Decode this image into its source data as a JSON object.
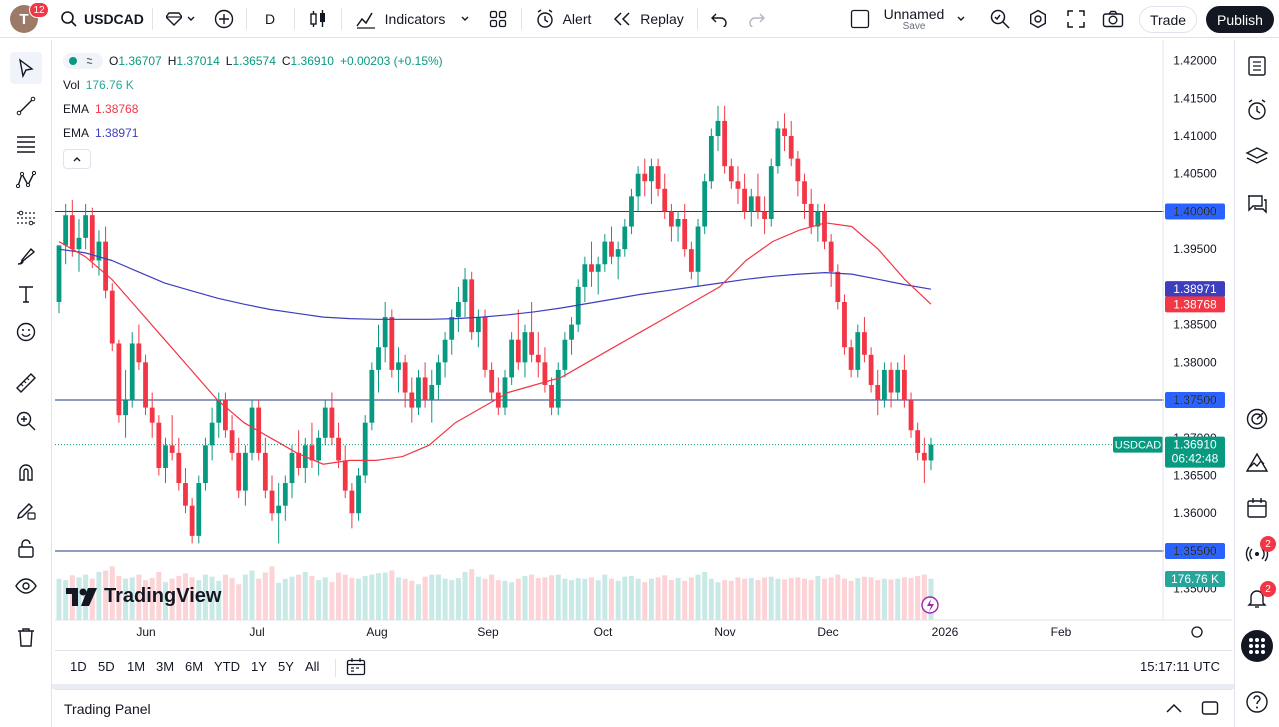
{
  "toolbar": {
    "avatar_letter": "T",
    "notification_count": "12",
    "symbol": "USDCAD",
    "interval": "D",
    "indicators_label": "Indicators",
    "alert_label": "Alert",
    "replay_label": "Replay",
    "layout_name": "Unnamed",
    "layout_save_label": "Save",
    "trade_label": "Trade",
    "publish_label": "Publish"
  },
  "legend": {
    "o_label": "O",
    "o_value": "1.36707",
    "h_label": "H",
    "h_value": "1.37014",
    "l_label": "L",
    "l_value": "1.36574",
    "c_label": "C",
    "c_value": "1.36910",
    "change": "+0.00203 (+0.15%)",
    "vol_label": "Vol",
    "vol_value": "176.76 K",
    "ema1_label": "EMA",
    "ema1_value": "1.38768",
    "ema2_label": "EMA",
    "ema2_value": "1.38971"
  },
  "price_axis": {
    "ticks": [
      "1.42000",
      "1.41500",
      "1.41000",
      "1.40500",
      "1.40000",
      "1.39500",
      "1.39000",
      "1.38500",
      "1.38000",
      "1.37500",
      "1.37000",
      "1.36500",
      "1.36000",
      "1.35500",
      "1.35000"
    ],
    "levels": [
      {
        "label": "1.40000",
        "price": 1.4
      },
      {
        "label": "1.37500",
        "price": 1.375
      },
      {
        "label": "1.35500",
        "price": 1.355
      }
    ],
    "ema_long_label": "1.38971",
    "ema_short_label": "1.38768",
    "current_symbol": "USDCAD",
    "current_price": "1.36910",
    "countdown": "06:42:48",
    "volume_label": "176.76 K"
  },
  "time_axis": {
    "labels": [
      "Jun",
      "Jul",
      "Aug",
      "Sep",
      "Oct",
      "Nov",
      "Dec",
      "2026",
      "Feb"
    ]
  },
  "bottom": {
    "ranges": [
      "1D",
      "5D",
      "1M",
      "3M",
      "6M",
      "YTD",
      "1Y",
      "5Y",
      "All"
    ],
    "clock": "15:17:11 UTC",
    "trading_panel": "Trading Panel"
  },
  "brand": {
    "logo_text": "TradingView"
  },
  "badges": {
    "right_alerts": "2",
    "right_notifications": "2"
  },
  "colors": {
    "up": "#089981",
    "down": "#f23645",
    "ema_short": "#f23645",
    "ema_long": "#3d3dbf",
    "level_line": "#2962ff",
    "accent": "#2962ff"
  },
  "chart_data": {
    "type": "candlestick",
    "ylim": [
      1.3485,
      1.421
    ],
    "points": [
      [
        1.388,
        1.3955,
        1.3865,
        1.3955
      ],
      [
        1.3955,
        1.401,
        1.393,
        1.3995
      ],
      [
        1.3995,
        1.4015,
        1.394,
        1.395
      ],
      [
        1.395,
        1.399,
        1.392,
        1.3965
      ],
      [
        1.3965,
        1.401,
        1.395,
        1.3995
      ],
      [
        1.3995,
        1.4005,
        1.3925,
        1.3935
      ],
      [
        1.3935,
        1.3975,
        1.3915,
        1.396
      ],
      [
        1.396,
        1.398,
        1.3885,
        1.3895
      ],
      [
        1.3895,
        1.3905,
        1.3815,
        1.3825
      ],
      [
        1.3825,
        1.383,
        1.372,
        1.373
      ],
      [
        1.373,
        1.379,
        1.37,
        1.375
      ],
      [
        1.375,
        1.384,
        1.374,
        1.3825
      ],
      [
        1.3825,
        1.385,
        1.379,
        1.38
      ],
      [
        1.38,
        1.381,
        1.373,
        1.374
      ],
      [
        1.374,
        1.376,
        1.37,
        1.372
      ],
      [
        1.372,
        1.373,
        1.365,
        1.366
      ],
      [
        1.366,
        1.37,
        1.364,
        1.369
      ],
      [
        1.369,
        1.373,
        1.367,
        1.368
      ],
      [
        1.368,
        1.37,
        1.363,
        1.364
      ],
      [
        1.364,
        1.366,
        1.36,
        1.361
      ],
      [
        1.361,
        1.362,
        1.356,
        1.357
      ],
      [
        1.357,
        1.365,
        1.356,
        1.364
      ],
      [
        1.364,
        1.37,
        1.363,
        1.369
      ],
      [
        1.369,
        1.374,
        1.367,
        1.372
      ],
      [
        1.372,
        1.376,
        1.37,
        1.375
      ],
      [
        1.375,
        1.376,
        1.37,
        1.371
      ],
      [
        1.371,
        1.373,
        1.367,
        1.368
      ],
      [
        1.368,
        1.37,
        1.362,
        1.363
      ],
      [
        1.363,
        1.369,
        1.361,
        1.368
      ],
      [
        1.368,
        1.375,
        1.367,
        1.374
      ],
      [
        1.374,
        1.375,
        1.367,
        1.368
      ],
      [
        1.368,
        1.37,
        1.362,
        1.363
      ],
      [
        1.363,
        1.365,
        1.359,
        1.36
      ],
      [
        1.36,
        1.364,
        1.356,
        1.361
      ],
      [
        1.361,
        1.365,
        1.359,
        1.364
      ],
      [
        1.364,
        1.369,
        1.362,
        1.368
      ],
      [
        1.368,
        1.371,
        1.365,
        1.366
      ],
      [
        1.366,
        1.37,
        1.364,
        1.369
      ],
      [
        1.369,
        1.372,
        1.366,
        1.367
      ],
      [
        1.367,
        1.371,
        1.365,
        1.37
      ],
      [
        1.37,
        1.375,
        1.369,
        1.374
      ],
      [
        1.374,
        1.376,
        1.369,
        1.37
      ],
      [
        1.37,
        1.372,
        1.366,
        1.367
      ],
      [
        1.367,
        1.369,
        1.362,
        1.363
      ],
      [
        1.363,
        1.364,
        1.358,
        1.36
      ],
      [
        1.36,
        1.366,
        1.359,
        1.365
      ],
      [
        1.365,
        1.373,
        1.364,
        1.372
      ],
      [
        1.372,
        1.38,
        1.371,
        1.379
      ],
      [
        1.379,
        1.385,
        1.376,
        1.382
      ],
      [
        1.382,
        1.388,
        1.38,
        1.386
      ],
      [
        1.386,
        1.387,
        1.378,
        1.379
      ],
      [
        1.379,
        1.382,
        1.376,
        1.38
      ],
      [
        1.38,
        1.381,
        1.374,
        1.376
      ],
      [
        1.376,
        1.378,
        1.372,
        1.374
      ],
      [
        1.374,
        1.379,
        1.373,
        1.378
      ],
      [
        1.378,
        1.38,
        1.374,
        1.375
      ],
      [
        1.375,
        1.379,
        1.372,
        1.377
      ],
      [
        1.377,
        1.381,
        1.375,
        1.38
      ],
      [
        1.38,
        1.384,
        1.378,
        1.383
      ],
      [
        1.383,
        1.387,
        1.381,
        1.386
      ],
      [
        1.386,
        1.39,
        1.384,
        1.388
      ],
      [
        1.388,
        1.3925,
        1.386,
        1.391
      ],
      [
        1.391,
        1.392,
        1.383,
        1.384
      ],
      [
        1.384,
        1.387,
        1.382,
        1.386
      ],
      [
        1.386,
        1.387,
        1.378,
        1.379
      ],
      [
        1.379,
        1.38,
        1.375,
        1.376
      ],
      [
        1.376,
        1.378,
        1.373,
        1.374
      ],
      [
        1.374,
        1.379,
        1.373,
        1.378
      ],
      [
        1.378,
        1.384,
        1.377,
        1.383
      ],
      [
        1.383,
        1.387,
        1.379,
        1.38
      ],
      [
        1.38,
        1.385,
        1.378,
        1.384
      ],
      [
        1.384,
        1.388,
        1.38,
        1.381
      ],
      [
        1.381,
        1.384,
        1.378,
        1.38
      ],
      [
        1.38,
        1.382,
        1.376,
        1.377
      ],
      [
        1.377,
        1.378,
        1.373,
        1.374
      ],
      [
        1.374,
        1.38,
        1.373,
        1.379
      ],
      [
        1.379,
        1.384,
        1.378,
        1.383
      ],
      [
        1.383,
        1.386,
        1.381,
        1.385
      ],
      [
        1.385,
        1.391,
        1.384,
        1.39
      ],
      [
        1.39,
        1.394,
        1.388,
        1.393
      ],
      [
        1.393,
        1.396,
        1.39,
        1.392
      ],
      [
        1.392,
        1.394,
        1.389,
        1.393
      ],
      [
        1.393,
        1.397,
        1.392,
        1.396
      ],
      [
        1.396,
        1.398,
        1.393,
        1.394
      ],
      [
        1.394,
        1.396,
        1.391,
        1.395
      ],
      [
        1.395,
        1.399,
        1.394,
        1.398
      ],
      [
        1.398,
        1.403,
        1.397,
        1.402
      ],
      [
        1.402,
        1.406,
        1.4,
        1.405
      ],
      [
        1.405,
        1.407,
        1.402,
        1.404
      ],
      [
        1.404,
        1.407,
        1.401,
        1.406
      ],
      [
        1.406,
        1.407,
        1.402,
        1.403
      ],
      [
        1.403,
        1.405,
        1.399,
        1.4
      ],
      [
        1.4,
        1.401,
        1.396,
        1.398
      ],
      [
        1.398,
        1.4,
        1.396,
        1.399
      ],
      [
        1.399,
        1.401,
        1.394,
        1.395
      ],
      [
        1.395,
        1.396,
        1.391,
        1.392
      ],
      [
        1.392,
        1.399,
        1.39,
        1.398
      ],
      [
        1.398,
        1.405,
        1.397,
        1.404
      ],
      [
        1.404,
        1.411,
        1.403,
        1.41
      ],
      [
        1.41,
        1.414,
        1.408,
        1.412
      ],
      [
        1.412,
        1.414,
        1.405,
        1.406
      ],
      [
        1.406,
        1.407,
        1.403,
        1.404
      ],
      [
        1.404,
        1.406,
        1.401,
        1.403
      ],
      [
        1.403,
        1.405,
        1.399,
        1.4
      ],
      [
        1.4,
        1.403,
        1.398,
        1.402
      ],
      [
        1.402,
        1.405,
        1.399,
        1.4
      ],
      [
        1.4,
        1.402,
        1.397,
        1.399
      ],
      [
        1.399,
        1.407,
        1.398,
        1.406
      ],
      [
        1.406,
        1.412,
        1.405,
        1.411
      ],
      [
        1.411,
        1.413,
        1.408,
        1.41
      ],
      [
        1.41,
        1.412,
        1.406,
        1.407
      ],
      [
        1.407,
        1.408,
        1.402,
        1.404
      ],
      [
        1.404,
        1.405,
        1.399,
        1.401
      ],
      [
        1.401,
        1.403,
        1.397,
        1.398
      ],
      [
        1.398,
        1.401,
        1.396,
        1.4
      ],
      [
        1.4,
        1.401,
        1.395,
        1.396
      ],
      [
        1.396,
        1.397,
        1.39,
        1.392
      ],
      [
        1.392,
        1.393,
        1.387,
        1.388
      ],
      [
        1.388,
        1.389,
        1.381,
        1.382
      ],
      [
        1.382,
        1.383,
        1.378,
        1.379
      ],
      [
        1.379,
        1.385,
        1.378,
        1.384
      ],
      [
        1.384,
        1.386,
        1.38,
        1.381
      ],
      [
        1.381,
        1.382,
        1.376,
        1.377
      ],
      [
        1.377,
        1.379,
        1.373,
        1.375
      ],
      [
        1.375,
        1.38,
        1.374,
        1.379
      ],
      [
        1.379,
        1.38,
        1.374,
        1.376
      ],
      [
        1.376,
        1.38,
        1.375,
        1.379
      ],
      [
        1.379,
        1.381,
        1.374,
        1.375
      ],
      [
        1.375,
        1.376,
        1.37,
        1.371
      ],
      [
        1.371,
        1.372,
        1.367,
        1.368
      ],
      [
        1.368,
        1.37,
        1.364,
        1.367
      ],
      [
        1.367,
        1.37,
        1.3657,
        1.3691
      ]
    ],
    "ema_short": [
      1.396,
      1.394,
      1.391,
      1.387,
      1.383,
      1.379,
      1.375,
      1.372,
      1.37,
      1.368,
      1.3665,
      1.367,
      1.367,
      1.3675,
      1.369,
      1.372,
      1.374,
      1.376,
      1.377,
      1.378,
      1.38,
      1.382,
      1.384,
      1.386,
      1.388,
      1.39,
      1.3935,
      1.396,
      1.3975,
      1.3985,
      1.398,
      1.395,
      1.391,
      1.3877
    ],
    "ema_long": [
      1.395,
      1.3945,
      1.3935,
      1.392,
      1.3905,
      1.3895,
      1.3885,
      1.3877,
      1.387,
      1.3865,
      1.386,
      1.3858,
      1.3857,
      1.3857,
      1.3857,
      1.3858,
      1.386,
      1.3863,
      1.3867,
      1.3872,
      1.3878,
      1.3884,
      1.389,
      1.3895,
      1.39,
      1.3905,
      1.391,
      1.3914,
      1.3917,
      1.3919,
      1.3917,
      1.391,
      1.3903,
      1.3897
    ],
    "volume": [
      60,
      58,
      65,
      62,
      66,
      60,
      70,
      72,
      78,
      64,
      60,
      62,
      66,
      58,
      61,
      70,
      55,
      60,
      64,
      68,
      62,
      58,
      66,
      63,
      57,
      66,
      61,
      52,
      66,
      72,
      60,
      69,
      78,
      54,
      60,
      63,
      66,
      70,
      64,
      58,
      62,
      55,
      69,
      66,
      61,
      60,
      64,
      66,
      68,
      69,
      72,
      62,
      60,
      57,
      52,
      63,
      66,
      66,
      60,
      58,
      61,
      70,
      74,
      63,
      60,
      66,
      58,
      57,
      55,
      60,
      64,
      66,
      61,
      62,
      65,
      66,
      60,
      58,
      61,
      60,
      62,
      58,
      66,
      60,
      57,
      63,
      64,
      60,
      55,
      60,
      62,
      65,
      58,
      61,
      57,
      62,
      66,
      70,
      60,
      55,
      58,
      57,
      62,
      60,
      61,
      58,
      62,
      63,
      60,
      59,
      61,
      62,
      60,
      58,
      64,
      60,
      62,
      66,
      60,
      57,
      61,
      63,
      62,
      58,
      60,
      59,
      60,
      62,
      61,
      64,
      66,
      60,
      58,
      62,
      64,
      65,
      60,
      62,
      69,
      58,
      60,
      61,
      58,
      57,
      60,
      66,
      70,
      60,
      66
    ]
  }
}
